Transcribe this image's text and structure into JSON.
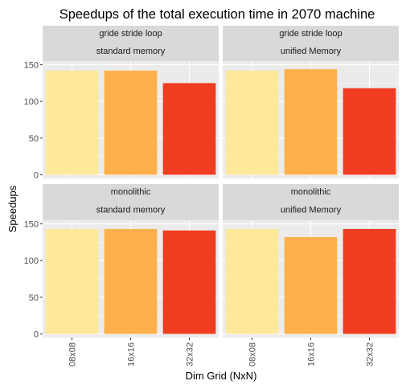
{
  "chart_data": {
    "type": "bar",
    "title": "Speedups of the total execution time in 2070 machine",
    "xlabel": "Dim Grid (NxN)",
    "ylabel": "Speedups",
    "categories": [
      "08x08",
      "16x16",
      "32x32"
    ],
    "ylim": [
      -5,
      155
    ],
    "yticks": [
      0,
      50,
      100,
      150
    ],
    "bar_colors": [
      "#FEE899",
      "#FDB04B",
      "#F03C20"
    ],
    "panel_background": "#EBEBEB",
    "strip_background": "#D9D9D9",
    "grid": true,
    "facets": [
      {
        "row": 0,
        "col": 0,
        "strip": [
          "gride stride loop",
          "standard memory"
        ],
        "values": [
          142,
          142,
          125
        ]
      },
      {
        "row": 0,
        "col": 1,
        "strip": [
          "gride stride loop",
          "unified Memory"
        ],
        "values": [
          142,
          144,
          118
        ]
      },
      {
        "row": 1,
        "col": 0,
        "strip": [
          "monolithic",
          "standard memory"
        ],
        "values": [
          143,
          143,
          141
        ]
      },
      {
        "row": 1,
        "col": 1,
        "strip": [
          "monolithic",
          "unified Memory"
        ],
        "values": [
          143,
          132,
          143
        ]
      }
    ]
  }
}
